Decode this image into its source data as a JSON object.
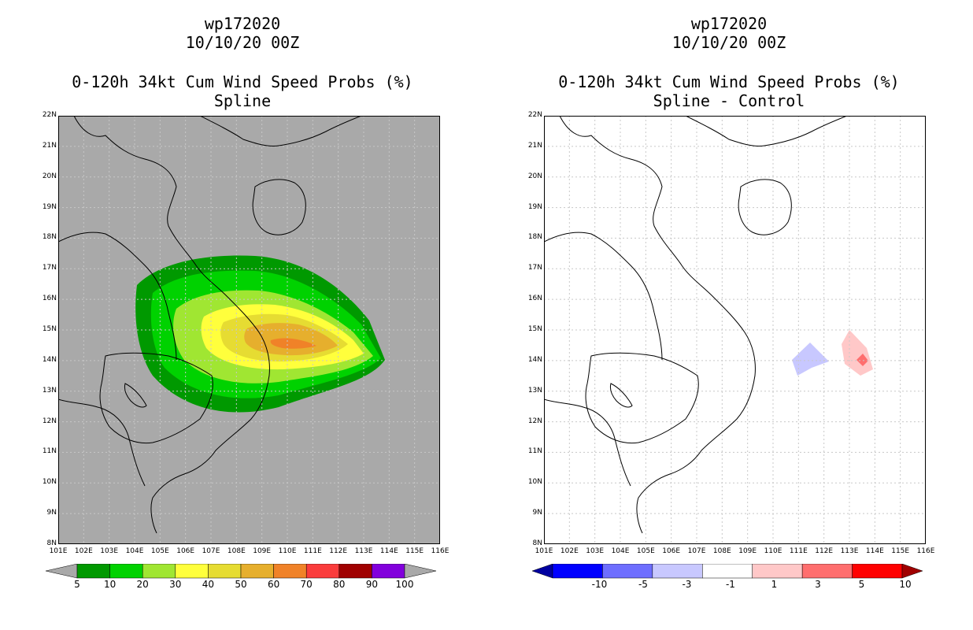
{
  "left_panel": {
    "storm_id": "wp172020",
    "init_time": "10/10/20 00Z",
    "product": "0-120h 34kt Cum Wind Speed Probs (%)",
    "subtitle": "Spline",
    "colorbar": {
      "labels": [
        "5",
        "10",
        "20",
        "30",
        "40",
        "50",
        "60",
        "70",
        "80",
        "90",
        "100"
      ],
      "colors": [
        "#009900",
        "#00d200",
        "#a0e632",
        "#ffff3c",
        "#e6dc32",
        "#e6af2d",
        "#f08228",
        "#fa3c3c",
        "#a00000",
        "#8200dc"
      ]
    }
  },
  "right_panel": {
    "storm_id": "wp172020",
    "init_time": "10/10/20 00Z",
    "product": "0-120h 34kt Cum Wind Speed Probs (%)",
    "subtitle": "Spline - Control",
    "colorbar": {
      "labels": [
        "-10",
        "-5",
        "-3",
        "-1",
        "1",
        "3",
        "5",
        "10"
      ],
      "colors": [
        "#0000a0",
        "#0000ff",
        "#6e6eff",
        "#c8c8ff",
        "#ffffff",
        "#ffc8c8",
        "#ff6e6e",
        "#ff0000",
        "#a00000"
      ]
    }
  },
  "axes": {
    "lat_labels": [
      "22N",
      "21N",
      "20N",
      "19N",
      "18N",
      "17N",
      "16N",
      "15N",
      "14N",
      "13N",
      "12N",
      "11N",
      "10N",
      "9N",
      "8N"
    ],
    "lon_labels": [
      "101E",
      "102E",
      "103E",
      "104E",
      "105E",
      "106E",
      "107E",
      "108E",
      "109E",
      "110E",
      "111E",
      "112E",
      "113E",
      "114E",
      "115E",
      "116E"
    ]
  },
  "colors": {
    "land_bg_left": "#a9a9a9",
    "grid": "#c8c8c8",
    "coast": "#000000"
  }
}
